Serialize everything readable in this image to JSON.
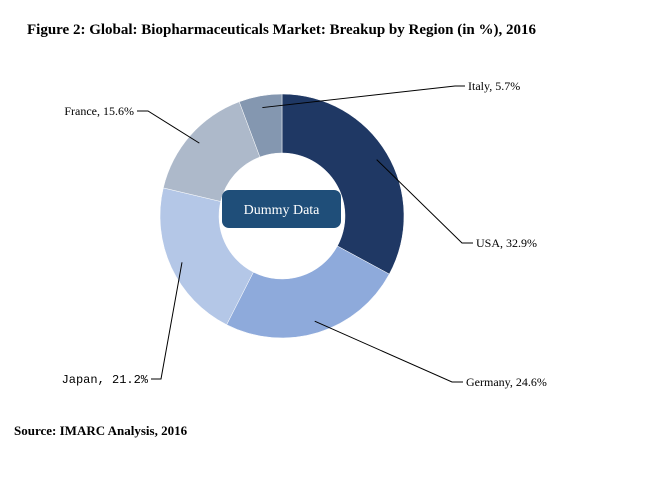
{
  "title": "Figure 2: Global: Biopharmaceuticals Market: Breakup by Region (in %), 2016",
  "source": "Source: IMARC Analysis, 2016",
  "watermark": "Dummy Data",
  "chart_data": {
    "type": "pie",
    "donut": true,
    "title": "Figure 2: Global: Biopharmaceuticals Market: Breakup by Region (in %), 2016",
    "categories": [
      "USA",
      "Germany",
      "Japan",
      "France",
      "Italy"
    ],
    "values": [
      32.9,
      24.6,
      21.2,
      15.6,
      5.7
    ],
    "labels": [
      "USA, 32.9%",
      "Germany, 24.6%",
      "Japan, 21.2%",
      "France, 15.6%",
      "Italy, 5.7%"
    ],
    "colors": [
      "#1f3864",
      "#8eaadb",
      "#b4c7e7",
      "#adb9ca",
      "#8497b0"
    ],
    "start": "12 o'clock",
    "direction": "clockwise"
  }
}
